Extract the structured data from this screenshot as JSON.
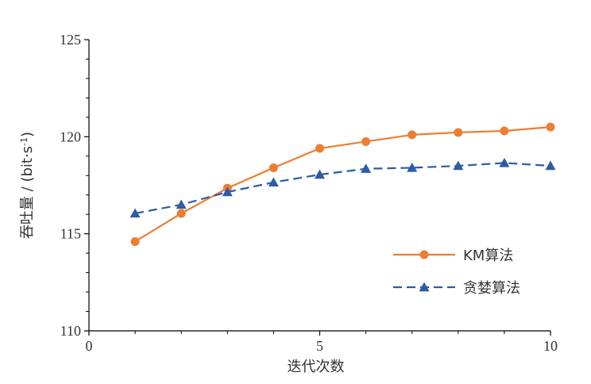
{
  "chart_data": {
    "type": "line",
    "xlabel": "迭代次数",
    "ylabel": "吞吐量 / (bit·s",
    "ylabel_sup": "-1",
    "ylabel_close": ")",
    "xlim": [
      0,
      10
    ],
    "ylim": [
      110,
      125
    ],
    "xticks": [
      0,
      5,
      10
    ],
    "yticks": [
      110,
      115,
      120,
      125
    ],
    "grid": false,
    "legend_position": "right",
    "series": [
      {
        "name": "KM算法",
        "color": "#ED7D31",
        "line_style": "solid",
        "marker": "circle",
        "x": [
          1,
          2,
          3,
          4,
          5,
          6,
          7,
          8,
          9,
          10
        ],
        "y": [
          114.6,
          116.05,
          117.35,
          118.4,
          119.4,
          119.75,
          120.1,
          120.22,
          120.3,
          120.5
        ]
      },
      {
        "name": "贪婪算法",
        "color": "#2E5BA8",
        "line_style": "dashed",
        "marker": "triangle",
        "x": [
          1,
          2,
          3,
          4,
          5,
          6,
          7,
          8,
          9,
          10
        ],
        "y": [
          116.05,
          116.5,
          117.15,
          117.65,
          118.05,
          118.35,
          118.4,
          118.5,
          118.65,
          118.5
        ]
      }
    ]
  }
}
